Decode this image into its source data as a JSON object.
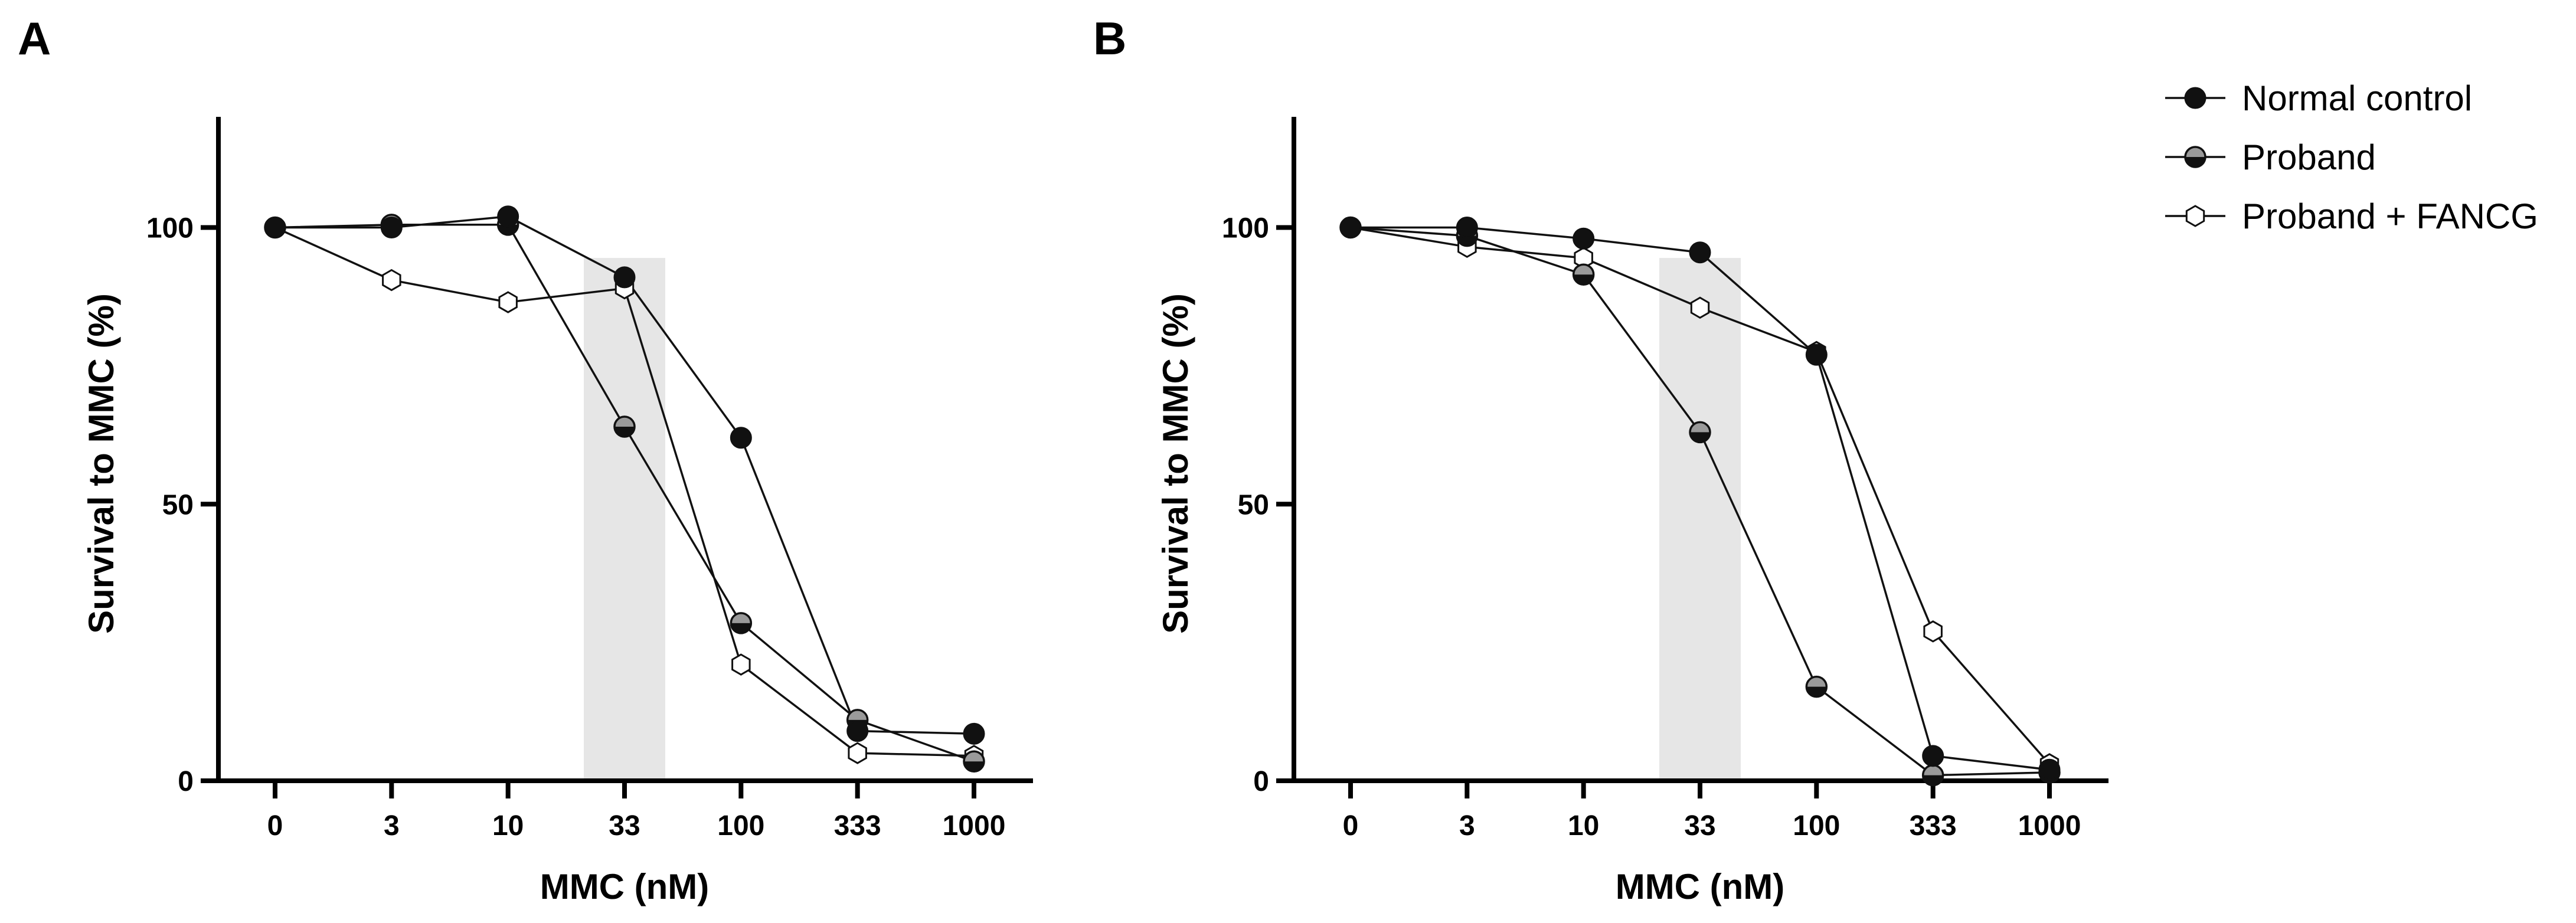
{
  "chart_data": [
    {
      "type": "line",
      "panel": "A",
      "title": "",
      "xlabel": "MMC (nM)",
      "ylabel": "Survival to MMC (%)",
      "categories": [
        "0",
        "3",
        "10",
        "33",
        "100",
        "333",
        "1000"
      ],
      "ylim": [
        0,
        120
      ],
      "yticks": [
        0,
        50,
        100
      ],
      "grid": false,
      "highlight_category": "33",
      "series": [
        {
          "name": "Normal control",
          "marker": "filled",
          "values": [
            100,
            100,
            102,
            91,
            62,
            9,
            8.5
          ]
        },
        {
          "name": "Proband",
          "marker": "half",
          "values": [
            100,
            100.5,
            100.5,
            64,
            28.5,
            11,
            3.5
          ]
        },
        {
          "name": "Proband + FANCG",
          "marker": "open",
          "values": [
            100,
            90.5,
            86.5,
            89,
            21,
            5,
            4.5
          ]
        }
      ]
    },
    {
      "type": "line",
      "panel": "B",
      "title": "",
      "xlabel": "MMC (nM)",
      "ylabel": "Survival to MMC (%)",
      "categories": [
        "0",
        "3",
        "10",
        "33",
        "100",
        "333",
        "1000"
      ],
      "ylim": [
        0,
        120
      ],
      "yticks": [
        0,
        50,
        100
      ],
      "grid": false,
      "highlight_category": "33",
      "series": [
        {
          "name": "Normal control",
          "marker": "filled",
          "values": [
            100,
            100,
            98,
            95.5,
            77,
            4.5,
            2
          ]
        },
        {
          "name": "Proband",
          "marker": "half",
          "values": [
            100,
            98.5,
            91.5,
            63,
            17,
            1,
            1.5
          ]
        },
        {
          "name": "Proband + FANCG",
          "marker": "open",
          "values": [
            100,
            96.5,
            94.5,
            85.5,
            77.5,
            27,
            3
          ]
        }
      ]
    }
  ],
  "legend": {
    "placement": "top-right",
    "entries": [
      {
        "label": "Normal control",
        "marker": "filled"
      },
      {
        "label": "Proband",
        "marker": "half"
      },
      {
        "label": "Proband + FANCG",
        "marker": "open"
      }
    ]
  },
  "colors": {
    "line": "#111111",
    "filled": "#111111",
    "half_top": "#9a9a9a",
    "open": "#ffffff",
    "highlight": "#e6e6e6"
  }
}
